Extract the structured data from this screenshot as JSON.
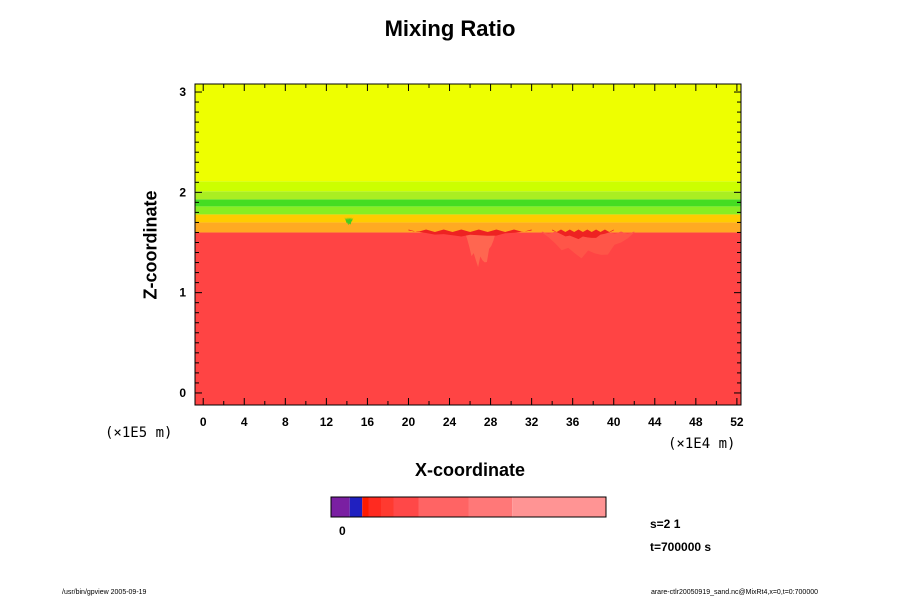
{
  "chart_data": {
    "type": "heatmap",
    "title": "Mixing Ratio",
    "xlabel": "X-coordinate",
    "ylabel": "Z-coordinate",
    "x_unit": "(×1E4 m)",
    "y_unit": "(×1E5 m)",
    "x_ticks": [
      0,
      4,
      8,
      12,
      16,
      20,
      24,
      28,
      32,
      36,
      40,
      44,
      48,
      52
    ],
    "y_ticks": [
      0,
      1,
      2,
      3
    ],
    "xlim": [
      -0.8,
      52.4
    ],
    "ylim": [
      -0.12,
      3.08
    ],
    "layers": [
      {
        "z_bottom": -0.12,
        "z_top": 1.6,
        "color": "#ff4444"
      },
      {
        "z_bottom": 1.6,
        "z_top": 1.7,
        "color": "#ffaa22"
      },
      {
        "z_bottom": 1.7,
        "z_top": 1.78,
        "color": "#ffcc00"
      },
      {
        "z_bottom": 1.78,
        "z_top": 1.86,
        "color": "#88ee22"
      },
      {
        "z_bottom": 1.86,
        "z_top": 1.93,
        "color": "#44dd22"
      },
      {
        "z_bottom": 1.93,
        "z_top": 2.01,
        "color": "#aaee22"
      },
      {
        "z_bottom": 2.01,
        "z_top": 2.11,
        "color": "#ccff00"
      },
      {
        "z_bottom": 2.11,
        "z_top": 3.08,
        "color": "#eeff00"
      }
    ],
    "features": [
      {
        "x": [
          25.5,
          28.5
        ],
        "z": [
          1.2,
          1.6
        ],
        "color": "#ff6650"
      },
      {
        "x": [
          33,
          42
        ],
        "z": [
          1.3,
          1.6
        ],
        "color": "#ff5548"
      },
      {
        "x": [
          20,
          32
        ],
        "z": [
          1.55,
          1.62
        ],
        "color": "#ee2222"
      },
      {
        "x": [
          34,
          40
        ],
        "z": [
          1.52,
          1.62
        ],
        "color": "#ee2222"
      },
      {
        "x": [
          13.8,
          14.6
        ],
        "z": [
          1.66,
          1.74
        ],
        "color": "#44cc22"
      }
    ],
    "colorbar": {
      "label": "0",
      "colors": [
        "#7a1fa2",
        "#2020c0",
        "#ff1a00",
        "#ff2a20",
        "#ff3a30",
        "#ff4848",
        "#ff6464",
        "#ff7878",
        "#ff9494"
      ],
      "widths": [
        3,
        2,
        1,
        2,
        2,
        4,
        8,
        7,
        15
      ]
    }
  },
  "info": {
    "s": "s=2 1",
    "t": "t=700000 s"
  },
  "footer": {
    "left": "/usr/bin/gpview 2005-09-19",
    "right": "arare-ctlr20050919_sand.nc@MixRt4,x=0,t=0:700000"
  }
}
